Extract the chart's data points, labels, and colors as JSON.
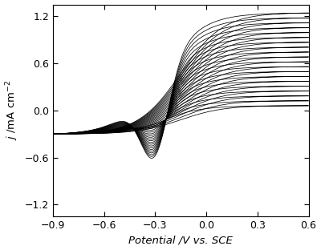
{
  "x_min": -0.9,
  "x_max": 0.6,
  "y_min": -1.35,
  "y_max": 1.35,
  "x_ticks": [
    -0.9,
    -0.6,
    -0.3,
    0.0,
    0.3,
    0.6
  ],
  "y_ticks": [
    -1.2,
    -0.6,
    0.0,
    0.6,
    1.2
  ],
  "xlabel": "Potential /V vs. SCE",
  "ylabel": "j /mA cm⁻²",
  "n_scans": 20,
  "line_color": "black",
  "background_color": "white",
  "figsize": [
    4.0,
    3.12
  ],
  "dpi": 100
}
